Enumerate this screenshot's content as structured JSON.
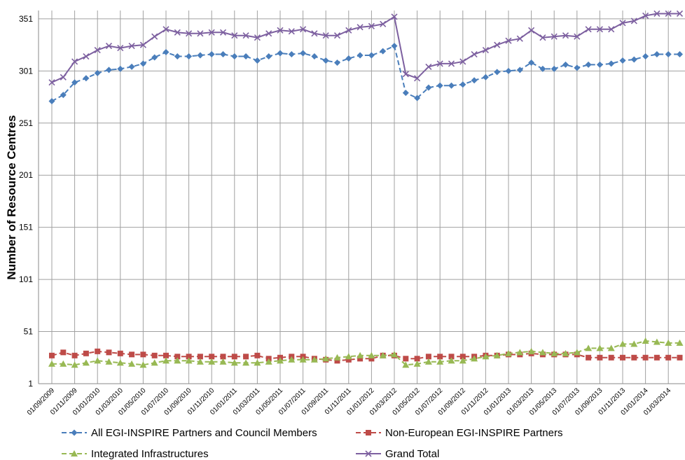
{
  "chart_data": {
    "type": "line",
    "y_label": "Number of Resource Centres",
    "categories": [
      "01/09/2009",
      null,
      "01/11/2009",
      null,
      "01/01/2010",
      null,
      "01/03/2010",
      null,
      "01/05/2010",
      null,
      "01/07/2010",
      null,
      "01/09/2010",
      null,
      "01/11/2010",
      null,
      "01/01/2011",
      null,
      "01/03/2011",
      null,
      "01/05/2011",
      null,
      "01/07/2011",
      null,
      "01/09/2011",
      null,
      "01/11/2011",
      null,
      "01/01/2012",
      null,
      "01/03/2012",
      null,
      "01/05/2012",
      null,
      "01/07/2012",
      null,
      "01/09/2012",
      null,
      "01/11/2012",
      null,
      "01/01/2013",
      null,
      "01/03/2013",
      null,
      "01/05/2013",
      null,
      "01/07/2013",
      null,
      "01/09/2013",
      null,
      "01/11/2013",
      null,
      "01/01/2014",
      null,
      "01/03/2014",
      null
    ],
    "ylim": [
      1,
      359
    ],
    "yticks": [
      1,
      51,
      101,
      151,
      201,
      251,
      301,
      351
    ],
    "grid": true,
    "series": [
      {
        "name": "All EGI-INSPIRE Partners and Council Members",
        "color": "#4a7ebb",
        "marker": "diamond",
        "dashed": true,
        "values": [
          272,
          278,
          290,
          294,
          299,
          302,
          303,
          305,
          308,
          314,
          319,
          315,
          315,
          316,
          317,
          317,
          315,
          315,
          311,
          315,
          318,
          317,
          318,
          315,
          311,
          309,
          313,
          316,
          316,
          320,
          325,
          280,
          275,
          285,
          287,
          287,
          288,
          292,
          295,
          300,
          301,
          302,
          309,
          303,
          303,
          307,
          304,
          307,
          307,
          308,
          311,
          312,
          315,
          317,
          317,
          317
        ]
      },
      {
        "name": "Non-European EGI-INSPIRE Partners",
        "color": "#be4b48",
        "marker": "square",
        "dashed": true,
        "values": [
          28,
          31,
          28,
          30,
          32,
          31,
          30,
          29,
          29,
          28,
          28,
          27,
          27,
          27,
          27,
          27,
          27,
          27,
          28,
          25,
          26,
          27,
          27,
          25,
          24,
          23,
          24,
          25,
          25,
          28,
          28,
          25,
          25,
          27,
          27,
          27,
          27,
          27,
          28,
          28,
          29,
          29,
          30,
          29,
          29,
          29,
          29,
          26,
          26,
          26,
          26,
          26,
          26,
          26,
          26,
          26
        ]
      },
      {
        "name": "Integrated Infrastructures",
        "color": "#98b954",
        "marker": "triangle",
        "dashed": true,
        "values": [
          20,
          20,
          19,
          21,
          23,
          22,
          21,
          20,
          19,
          21,
          23,
          23,
          23,
          22,
          22,
          22,
          21,
          21,
          21,
          22,
          23,
          24,
          24,
          24,
          25,
          26,
          27,
          28,
          28,
          28,
          29,
          19,
          20,
          22,
          22,
          23,
          23,
          25,
          27,
          28,
          30,
          31,
          32,
          31,
          30,
          30,
          31,
          35,
          35,
          35,
          39,
          39,
          42,
          41,
          40,
          40
        ]
      },
      {
        "name": "Grand Total",
        "color": "#7d60a0",
        "marker": "x",
        "dashed": false,
        "values": [
          290,
          295,
          310,
          315,
          321,
          325,
          323,
          325,
          326,
          334,
          341,
          338,
          337,
          337,
          338,
          338,
          335,
          335,
          333,
          337,
          340,
          339,
          341,
          337,
          335,
          335,
          340,
          343,
          344,
          346,
          353,
          298,
          294,
          305,
          308,
          308,
          310,
          317,
          321,
          326,
          330,
          332,
          340,
          333,
          334,
          335,
          334,
          341,
          341,
          341,
          347,
          349,
          354,
          356,
          356,
          356
        ]
      }
    ]
  }
}
